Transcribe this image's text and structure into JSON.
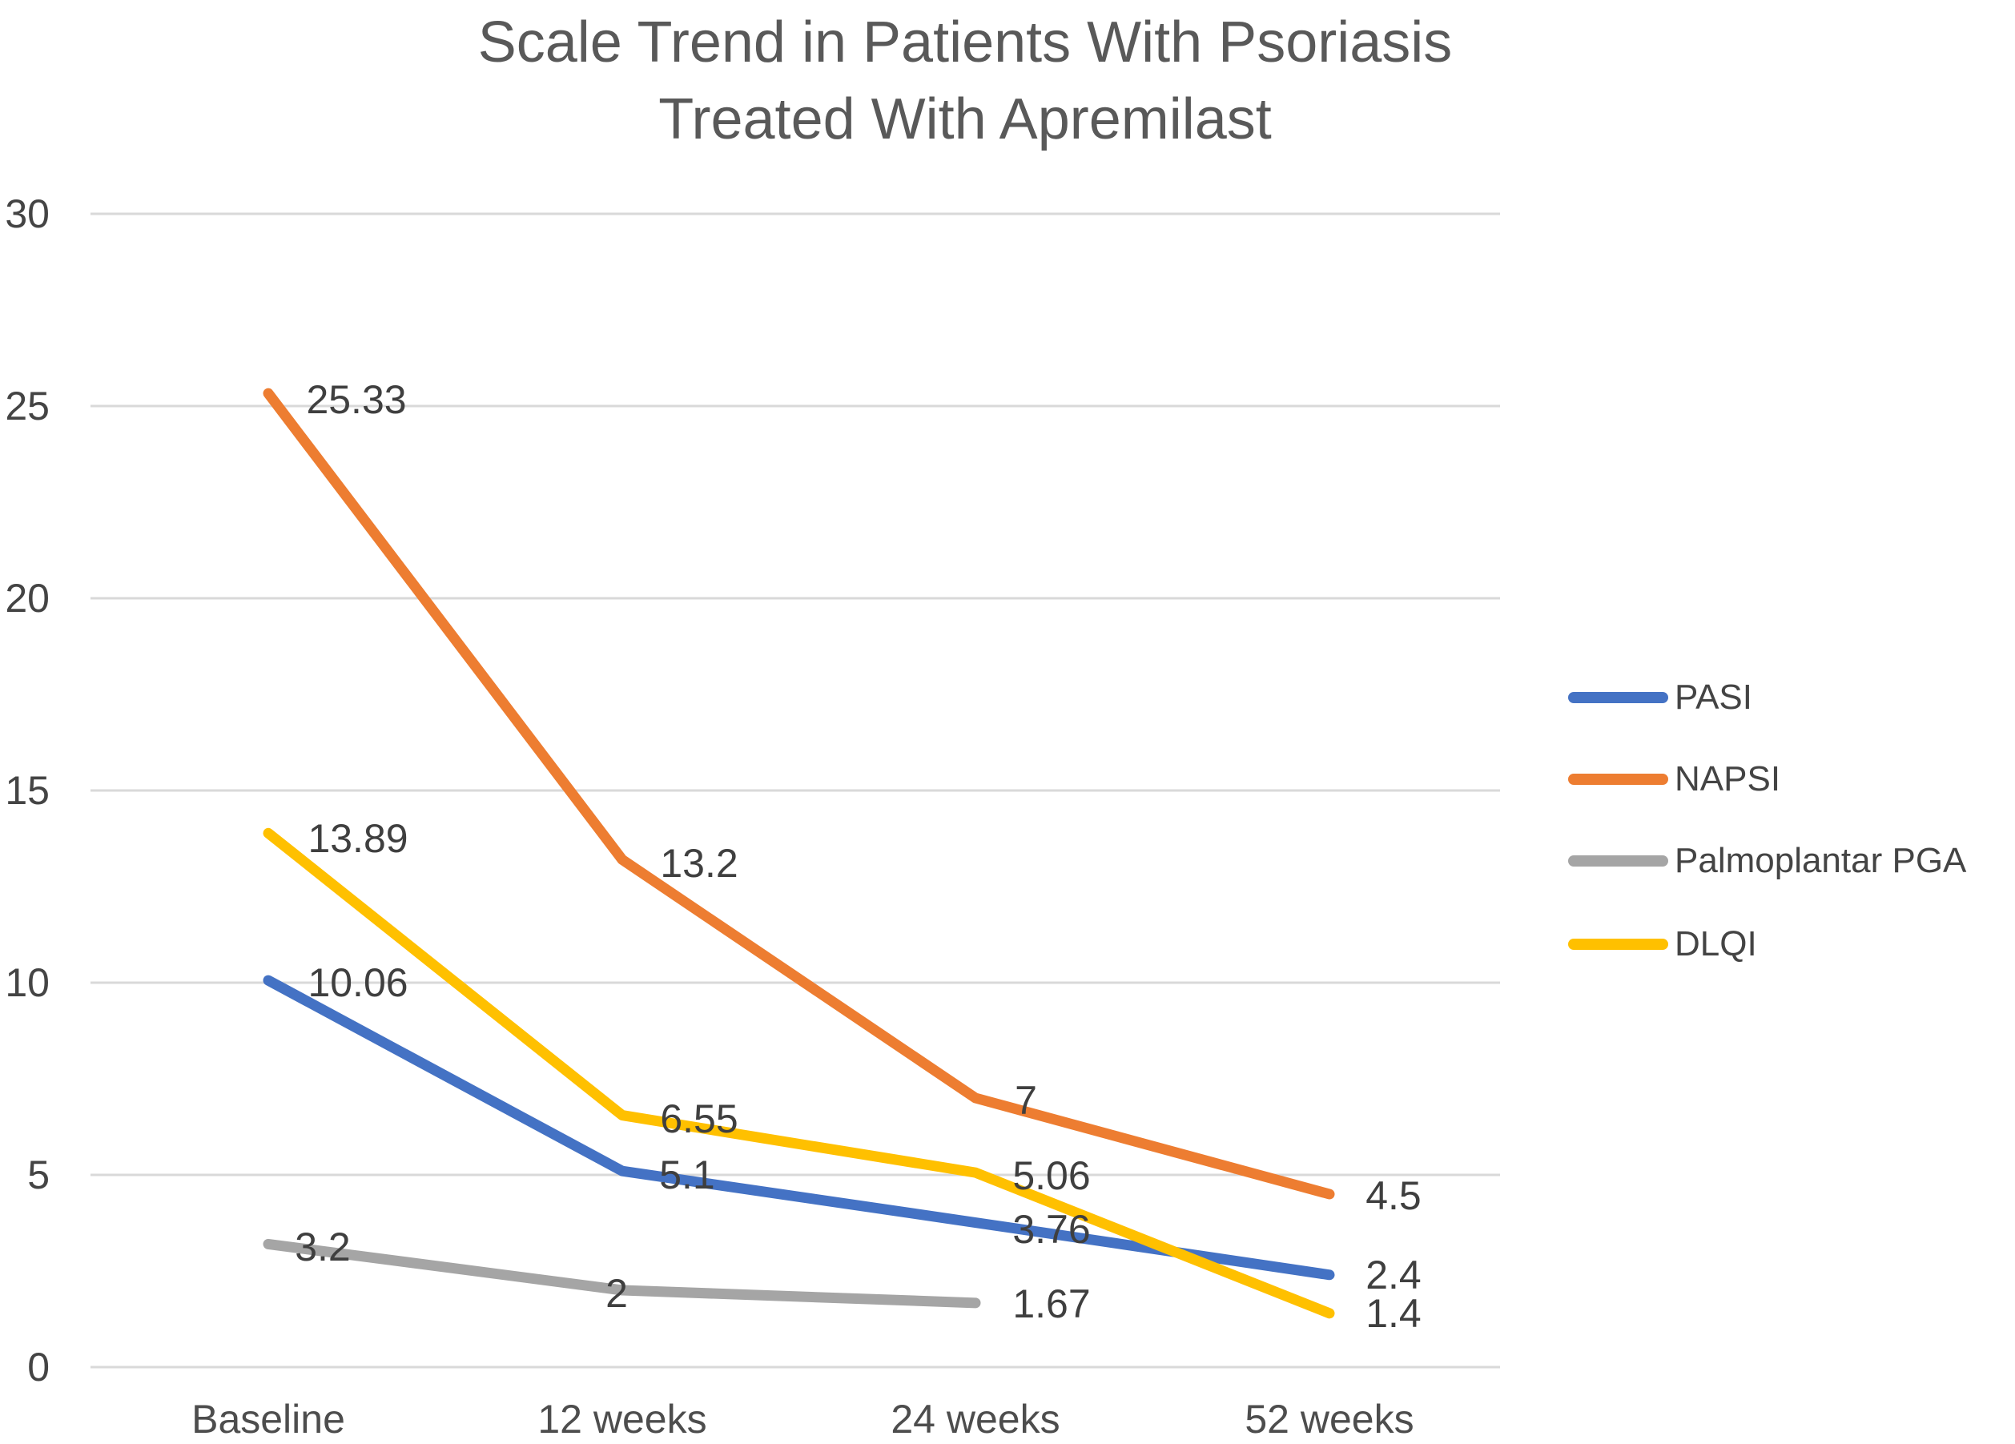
{
  "title": {
    "line1": "Scale Trend in Patients With Psoriasis",
    "line2": "Treated With Apremilast"
  },
  "chart_data": {
    "type": "line",
    "title": "Scale Trend in Patients With Psoriasis Treated With Apremilast",
    "categories": [
      "Baseline",
      "12 weeks",
      "24 weeks",
      "52 weeks"
    ],
    "xlabel": "",
    "ylabel": "",
    "ylim": [
      0,
      30
    ],
    "y_axis": {
      "min": 0,
      "max": 30,
      "step": 5,
      "tick_labels": [
        "0",
        "5",
        "10",
        "15",
        "20",
        "25",
        "30"
      ]
    },
    "grid": true,
    "legend_position": "right",
    "series": [
      {
        "name": "PASI",
        "color": "#4472C4",
        "values": [
          10.06,
          5.1,
          3.76,
          2.4
        ],
        "labels": [
          "10.06",
          "5.1",
          "3.76",
          "2.4"
        ],
        "label_pos": [
          [
            447,
            1227
          ],
          [
            858,
            1467
          ],
          [
            1313,
            1535
          ],
          [
            1740,
            1592
          ]
        ]
      },
      {
        "name": "NAPSI",
        "color": "#ED7D31",
        "values": [
          25.33,
          13.2,
          7,
          4.5
        ],
        "labels": [
          "25.33",
          "13.2",
          "7",
          "4.5"
        ],
        "label_pos": [
          [
            445,
            499
          ],
          [
            873,
            1078
          ],
          [
            1281,
            1374
          ],
          [
            1740,
            1493
          ]
        ]
      },
      {
        "name": "Palmoplantar PGA",
        "color": "#A5A5A5",
        "values": [
          3.2,
          2,
          1.67
        ],
        "labels": [
          "3.2",
          "2",
          "1.67"
        ],
        "label_pos": [
          [
            403,
            1557
          ],
          [
            770,
            1615
          ],
          [
            1313,
            1628
          ]
        ]
      },
      {
        "name": "DLQI",
        "color": "#FFC000",
        "values": [
          13.89,
          6.55,
          5.06,
          1.4
        ],
        "labels": [
          "13.89",
          "6.55",
          "5.06",
          "1.4"
        ],
        "label_pos": [
          [
            447,
            1047
          ],
          [
            873,
            1397
          ],
          [
            1313,
            1468
          ],
          [
            1740,
            1640
          ]
        ]
      }
    ],
    "style": {
      "gridline_color": "#D9D9D9",
      "tick_text_color": "#444444",
      "data_label_color": "#3F3F3F",
      "axis_label_color": "#4D4D4D",
      "title_color": "#595959"
    }
  }
}
